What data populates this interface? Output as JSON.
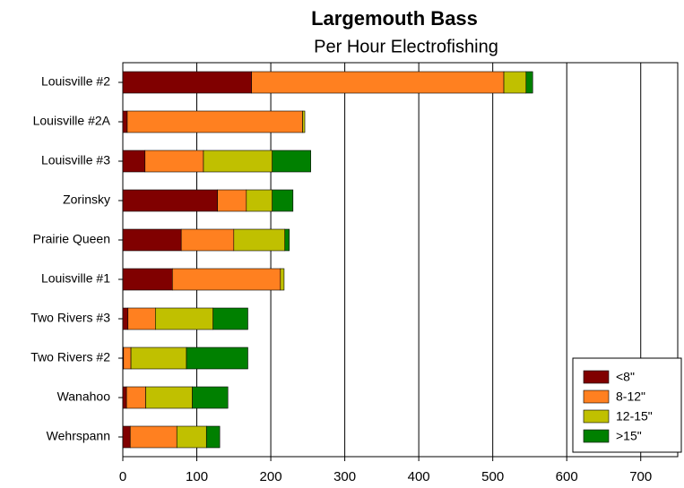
{
  "chart_data": {
    "type": "stacked_barh",
    "title": "Largemouth Bass",
    "subtitle": "Per Hour Electrofishing",
    "categories": [
      "Louisville #2",
      "Louisville #2A",
      "Louisville #3",
      "Zorinsky",
      "Prairie Queen",
      "Louisville #1",
      "Two Rivers #3",
      "Two Rivers #2",
      "Wanahoo",
      "Wehrspann"
    ],
    "series": [
      {
        "name": "<8\"",
        "color": "#800000",
        "values": [
          174,
          6,
          30,
          128,
          79,
          67,
          7,
          1,
          5,
          10
        ]
      },
      {
        "name": "8-12\"",
        "color": "#ff8020",
        "values": [
          341,
          237,
          79,
          39,
          71,
          146,
          37,
          10,
          26,
          63
        ]
      },
      {
        "name": "12-15\"",
        "color": "#c0c000",
        "values": [
          30,
          3,
          93,
          35,
          69,
          5,
          78,
          75,
          63,
          40
        ]
      },
      {
        "name": ">15\"",
        "color": "#008000",
        "values": [
          9,
          0,
          52,
          28,
          6,
          0,
          47,
          83,
          48,
          18
        ]
      }
    ],
    "xlim": [
      0,
      750
    ],
    "xticks": [
      0,
      100,
      200,
      300,
      400,
      500,
      600,
      700
    ],
    "grid": true,
    "legend": "lower right"
  }
}
